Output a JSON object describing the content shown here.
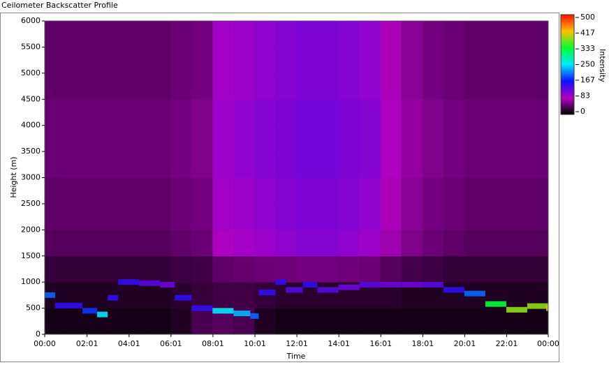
{
  "chart_data": {
    "type": "heatmap",
    "title": "Ceilometer Backscatter Profile",
    "x_label": "Time",
    "y_label": "Height (m)",
    "colorbar_label": "Intensity",
    "xlim": [
      0,
      24
    ],
    "ylim": [
      0,
      6000
    ],
    "zlim": [
      0,
      500
    ],
    "xticks": [
      {
        "value": 0,
        "label": "00:00"
      },
      {
        "value": 2.02,
        "label": "02:01"
      },
      {
        "value": 4.02,
        "label": "04:01"
      },
      {
        "value": 6.02,
        "label": "06:01"
      },
      {
        "value": 8.02,
        "label": "08:01"
      },
      {
        "value": 10.02,
        "label": "10:01"
      },
      {
        "value": 12.02,
        "label": "12:01"
      },
      {
        "value": 14.02,
        "label": "14:01"
      },
      {
        "value": 16.02,
        "label": "16:01"
      },
      {
        "value": 18.02,
        "label": "18:01"
      },
      {
        "value": 20.02,
        "label": "20:01"
      },
      {
        "value": 22.02,
        "label": "22:01"
      },
      {
        "value": 24,
        "label": "00:00"
      }
    ],
    "yticks": [
      0,
      500,
      1000,
      1500,
      2000,
      2500,
      3000,
      3500,
      4000,
      4500,
      5000,
      5500,
      6000
    ],
    "zticks": [
      0,
      83,
      167,
      250,
      333,
      417,
      500
    ],
    "colormap": [
      "#000000",
      "#b000c0",
      "#1010ff",
      "#00e8ff",
      "#00ff30",
      "#ffc000",
      "#ff1000"
    ],
    "z": [
      [
        10,
        10,
        10,
        10,
        10,
        10,
        15,
        35,
        40,
        35,
        15,
        10,
        10,
        10,
        10,
        10,
        10,
        10,
        10,
        10,
        10,
        10,
        10,
        10
      ],
      [
        15,
        15,
        15,
        15,
        15,
        15,
        20,
        25,
        30,
        30,
        25,
        20,
        20,
        20,
        20,
        20,
        20,
        15,
        15,
        15,
        15,
        15,
        15,
        15
      ],
      [
        25,
        25,
        25,
        25,
        25,
        25,
        28,
        30,
        45,
        48,
        50,
        52,
        55,
        55,
        52,
        50,
        40,
        32,
        28,
        25,
        25,
        25,
        25,
        25
      ],
      [
        40,
        40,
        40,
        40,
        40,
        40,
        45,
        50,
        85,
        90,
        95,
        100,
        105,
        105,
        100,
        95,
        75,
        60,
        50,
        45,
        40,
        40,
        40,
        40
      ],
      [
        45,
        45,
        45,
        45,
        45,
        45,
        50,
        55,
        90,
        95,
        100,
        105,
        110,
        110,
        105,
        100,
        80,
        65,
        55,
        50,
        45,
        45,
        45,
        45
      ],
      [
        45,
        45,
        45,
        45,
        45,
        45,
        50,
        55,
        90,
        95,
        100,
        105,
        110,
        110,
        105,
        100,
        80,
        65,
        55,
        50,
        45,
        45,
        45,
        45
      ],
      [
        50,
        50,
        50,
        50,
        50,
        50,
        55,
        60,
        95,
        100,
        105,
        110,
        115,
        115,
        110,
        105,
        85,
        70,
        60,
        55,
        50,
        50,
        50,
        50
      ],
      [
        50,
        50,
        50,
        50,
        50,
        50,
        55,
        60,
        95,
        100,
        105,
        110,
        115,
        115,
        110,
        105,
        85,
        70,
        60,
        55,
        50,
        50,
        50,
        50
      ],
      [
        50,
        50,
        50,
        50,
        50,
        50,
        55,
        60,
        95,
        100,
        105,
        110,
        115,
        115,
        110,
        105,
        85,
        70,
        60,
        55,
        50,
        50,
        50,
        50
      ],
      [
        45,
        45,
        45,
        45,
        45,
        45,
        50,
        55,
        90,
        95,
        100,
        105,
        110,
        110,
        105,
        100,
        80,
        65,
        55,
        50,
        45,
        45,
        45,
        45
      ],
      [
        45,
        45,
        45,
        45,
        45,
        45,
        50,
        55,
        90,
        95,
        100,
        105,
        110,
        110,
        105,
        100,
        80,
        65,
        55,
        50,
        45,
        45,
        45,
        45
      ],
      [
        45,
        45,
        45,
        45,
        45,
        45,
        50,
        55,
        90,
        95,
        100,
        105,
        110,
        110,
        105,
        100,
        80,
        65,
        55,
        50,
        45,
        45,
        45,
        45
      ]
    ],
    "layer": {
      "x": [
        0,
        0.5,
        1.8,
        2.5,
        3.0,
        3.5,
        4.5,
        5.5,
        6.2,
        7.0,
        8.0,
        9.0,
        9.8,
        10.2,
        11.0,
        11.5,
        12.3,
        13.0,
        14.0,
        15.0,
        16.0,
        17.0,
        18.0,
        19.0,
        20.0,
        21.0,
        22.0,
        23.0,
        24.0
      ],
      "heights": [
        750,
        550,
        450,
        380,
        700,
        1000,
        980,
        950,
        700,
        500,
        450,
        400,
        350,
        800,
        1000,
        850,
        950,
        850,
        900,
        950,
        950,
        950,
        950,
        850,
        780,
        580,
        470,
        540,
        500
      ],
      "intensities": [
        200,
        150,
        180,
        250,
        150,
        150,
        130,
        120,
        150,
        150,
        250,
        230,
        200,
        150,
        150,
        130,
        150,
        130,
        120,
        130,
        120,
        120,
        130,
        150,
        200,
        330,
        380,
        380,
        400
      ]
    }
  }
}
